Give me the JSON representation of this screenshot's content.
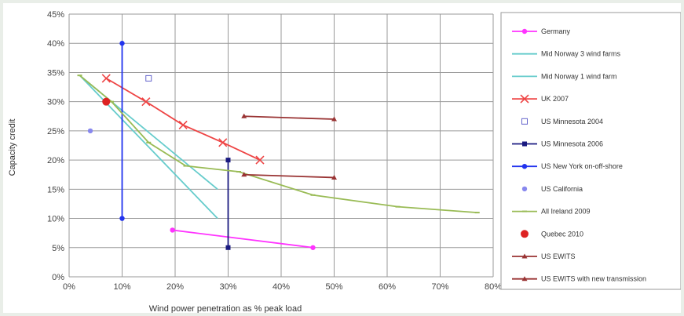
{
  "chart_data": {
    "type": "line",
    "xlabel": "Wind power penetration as % peak load",
    "ylabel": "Capacity credit",
    "xlim": [
      0,
      80
    ],
    "ylim": [
      0,
      45
    ],
    "x_ticks": [
      "0%",
      "10%",
      "20%",
      "30%",
      "40%",
      "50%",
      "60%",
      "70%",
      "80%"
    ],
    "y_ticks": [
      "0%",
      "5%",
      "10%",
      "15%",
      "20%",
      "25%",
      "30%",
      "35%",
      "40%",
      "45%"
    ],
    "grid": "horizontal and vertical",
    "legend_placement": "right",
    "series": [
      {
        "name": "Germany",
        "color": "#ff33ff",
        "marker": "dot",
        "points": [
          [
            19.5,
            8
          ],
          [
            46,
            5
          ]
        ]
      },
      {
        "name": "Mid Norway 3 wind farms",
        "color": "#66cccc",
        "marker": "none",
        "points": [
          [
            2,
            34.5
          ],
          [
            28,
            10
          ]
        ]
      },
      {
        "name": "Mid Norway 1 wind farm",
        "color": "#66cccc",
        "marker": "none",
        "points": [
          [
            2,
            34.5
          ],
          [
            28,
            15
          ]
        ]
      },
      {
        "name": "UK 2007",
        "color": "#ee4444",
        "marker": "x",
        "points": [
          [
            7,
            34
          ],
          [
            14.5,
            30
          ],
          [
            21.5,
            26
          ],
          [
            29,
            23
          ],
          [
            36,
            20
          ]
        ]
      },
      {
        "name": "US Minnesota 2004",
        "color": "#6666cc",
        "marker": "open-square",
        "points": [
          [
            15,
            34
          ]
        ]
      },
      {
        "name": "US Minnesota 2006",
        "color": "#1a1a80",
        "marker": "square",
        "points": [
          [
            30,
            20
          ],
          [
            30,
            5
          ]
        ]
      },
      {
        "name": "US New York on-off-shore",
        "color": "#2233ee",
        "marker": "dot",
        "points": [
          [
            10,
            40
          ],
          [
            10,
            10
          ]
        ]
      },
      {
        "name": "US California",
        "color": "#8888ee",
        "marker": "dot",
        "points": [
          [
            4,
            25
          ]
        ]
      },
      {
        "name": "All Ireland 2009",
        "color": "#99bb55",
        "marker": "dash",
        "points": [
          [
            2,
            34.5
          ],
          [
            8,
            30
          ],
          [
            15,
            23
          ],
          [
            22,
            19
          ],
          [
            32,
            18
          ],
          [
            46,
            14
          ],
          [
            62,
            12
          ],
          [
            77,
            11
          ]
        ]
      },
      {
        "name": "Quebec 2010",
        "color": "#dd2222",
        "marker": "big-dot",
        "points": [
          [
            7,
            30
          ]
        ]
      },
      {
        "name": "US EWITS",
        "color": "#993333",
        "marker": "triangle",
        "points": [
          [
            33,
            27.5
          ],
          [
            50,
            27
          ]
        ]
      },
      {
        "name": "US EWITS with new transmission",
        "color": "#993333",
        "marker": "triangle",
        "points": [
          [
            33,
            17.5
          ],
          [
            50,
            17
          ]
        ]
      }
    ]
  }
}
